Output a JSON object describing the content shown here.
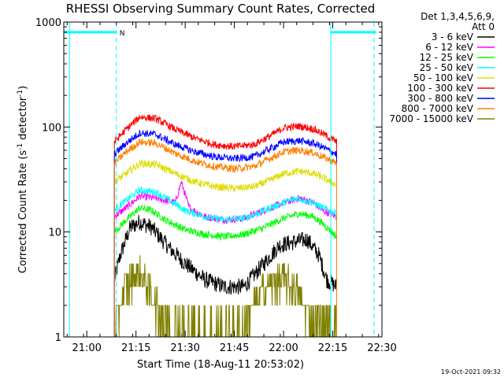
{
  "chart_data": {
    "type": "line",
    "title": "RHESSI Observing Summary Count Rates, Corrected",
    "xlabel": "Start Time (18-Aug-11 20:53:02)",
    "ylabel_parts": {
      "a": "Corrected Count Rate (s",
      "b": "-1",
      "c": " detector",
      "d": "-1",
      "e": ")"
    },
    "yscale": "log",
    "ylim": [
      1,
      1000
    ],
    "xlim": [
      20.883,
      22.5
    ],
    "x_ticks": [
      {
        "v": 21.0,
        "label": "21:00"
      },
      {
        "v": 21.25,
        "label": "21:15"
      },
      {
        "v": 21.5,
        "label": "21:30"
      },
      {
        "v": 21.75,
        "label": "21:45"
      },
      {
        "v": 22.0,
        "label": "22:00"
      },
      {
        "v": 22.25,
        "label": "22:15"
      },
      {
        "v": 22.5,
        "label": "22:30"
      }
    ],
    "y_ticks": [
      {
        "v": 1,
        "label": "1"
      },
      {
        "v": 10,
        "label": "10"
      },
      {
        "v": 100,
        "label": "100"
      },
      {
        "v": 1000,
        "label": "1000"
      }
    ],
    "legend_header": [
      "Det 1,3,4,5,6,9,",
      "Att 0"
    ],
    "footer": "19-Oct-2021 09:32",
    "data_interval": [
      21.14,
      22.27
    ],
    "series": [
      {
        "name": "3 - 6 keV",
        "color": "#000000",
        "x": [
          21.14,
          21.17,
          21.22,
          21.27,
          21.33,
          21.42,
          21.5,
          21.6,
          21.7,
          21.8,
          21.9,
          21.98,
          22.05,
          22.12,
          22.18,
          22.22,
          22.27
        ],
        "y": [
          3.5,
          6,
          11,
          12.5,
          11,
          7,
          5,
          3.5,
          3,
          3,
          5,
          7.5,
          8,
          8.5,
          6,
          3.5,
          3
        ]
      },
      {
        "name": "6 - 12 keV",
        "color": "#ff00ff",
        "x": [
          21.14,
          21.2,
          21.27,
          21.35,
          21.45,
          21.48,
          21.52,
          21.6,
          21.7,
          21.8,
          21.9,
          22.0,
          22.08,
          22.15,
          22.2,
          22.27
        ],
        "y": [
          14,
          17,
          22,
          21,
          19,
          30,
          17,
          14,
          13,
          13.5,
          16,
          19,
          21,
          19,
          16,
          14
        ]
      },
      {
        "name": "12 - 25 keV",
        "color": "#00ff00",
        "x": [
          21.14,
          21.2,
          21.27,
          21.33,
          21.4,
          21.5,
          21.6,
          21.7,
          21.8,
          21.9,
          22.0,
          22.08,
          22.15,
          22.2,
          22.27
        ],
        "y": [
          10,
          13,
          17,
          16,
          13,
          10.5,
          9.5,
          9,
          9.5,
          11,
          13.5,
          15,
          14,
          12,
          9
        ]
      },
      {
        "name": "25 - 50 keV",
        "color": "#00ffff",
        "x": [
          21.14,
          21.2,
          21.27,
          21.35,
          21.42,
          21.5,
          21.6,
          21.7,
          21.8,
          21.9,
          22.0,
          22.07,
          22.15,
          22.2,
          22.27
        ],
        "y": [
          16,
          20,
          25,
          24,
          20,
          16,
          14,
          13,
          13.5,
          16,
          19,
          21,
          19,
          17,
          15
        ]
      },
      {
        "name": "50 - 100 keV",
        "color": "#dddd00",
        "x": [
          21.14,
          21.2,
          21.27,
          21.35,
          21.45,
          21.55,
          21.65,
          21.75,
          21.85,
          21.93,
          22.0,
          22.08,
          22.15,
          22.2,
          22.27
        ],
        "y": [
          30,
          36,
          45,
          44,
          36,
          30,
          27,
          26,
          27,
          31,
          36,
          38,
          36,
          33,
          28
        ]
      },
      {
        "name": "100 - 300 keV",
        "color": "#ff0000",
        "x": [
          21.14,
          21.2,
          21.27,
          21.35,
          21.45,
          21.55,
          21.65,
          21.75,
          21.85,
          21.93,
          22.0,
          22.08,
          22.15,
          22.2,
          22.27
        ],
        "y": [
          72,
          95,
          125,
          120,
          95,
          78,
          68,
          65,
          68,
          82,
          98,
          102,
          96,
          86,
          72
        ]
      },
      {
        "name": "300 - 800 keV",
        "color": "#0000ff",
        "x": [
          21.14,
          21.2,
          21.27,
          21.35,
          21.45,
          21.55,
          21.65,
          21.75,
          21.85,
          21.93,
          22.0,
          22.08,
          22.15,
          22.2,
          22.27
        ],
        "y": [
          55,
          70,
          88,
          85,
          68,
          58,
          52,
          50,
          52,
          62,
          72,
          74,
          70,
          64,
          55
        ]
      },
      {
        "name": "800 - 7000 keV",
        "color": "#ff8000",
        "x": [
          21.14,
          21.2,
          21.27,
          21.35,
          21.45,
          21.55,
          21.65,
          21.75,
          21.85,
          21.93,
          22.0,
          22.08,
          22.15,
          22.2,
          22.27
        ],
        "y": [
          45,
          58,
          72,
          70,
          56,
          47,
          42,
          40,
          42,
          50,
          58,
          60,
          57,
          52,
          45
        ]
      },
      {
        "name": "7000 - 15000 keV",
        "color": "#808000",
        "x": [
          21.14,
          21.17,
          21.2,
          21.25,
          21.3,
          21.35,
          21.4,
          21.45,
          21.5,
          21.6,
          21.7,
          21.8,
          21.85,
          21.9,
          22.0,
          22.05,
          22.1,
          22.15,
          22.2,
          22.27
        ],
        "y": [
          1.3,
          2,
          3,
          4,
          3.5,
          2,
          1.5,
          1.3,
          1.2,
          1.2,
          1.2,
          1.3,
          2,
          3,
          3.5,
          3,
          2,
          1.5,
          1.3,
          1.2
        ]
      }
    ],
    "markers": [
      {
        "x": 20.912,
        "color": "#00ffff",
        "style": "solid"
      },
      {
        "x": 21.15,
        "color": "#00ffff",
        "style": "dashed"
      },
      {
        "x": 22.24,
        "color": "#00ffff",
        "style": "solid"
      },
      {
        "x": 22.46,
        "color": "#00ffff",
        "style": "dashed"
      }
    ],
    "night_bars": [
      {
        "x0": 20.883,
        "x1": 21.15,
        "y": 800,
        "color": "#00ffff",
        "label": "N"
      },
      {
        "x0": 22.24,
        "x1": 22.47,
        "y": 800,
        "color": "#00ffff",
        "label": ""
      }
    ]
  }
}
